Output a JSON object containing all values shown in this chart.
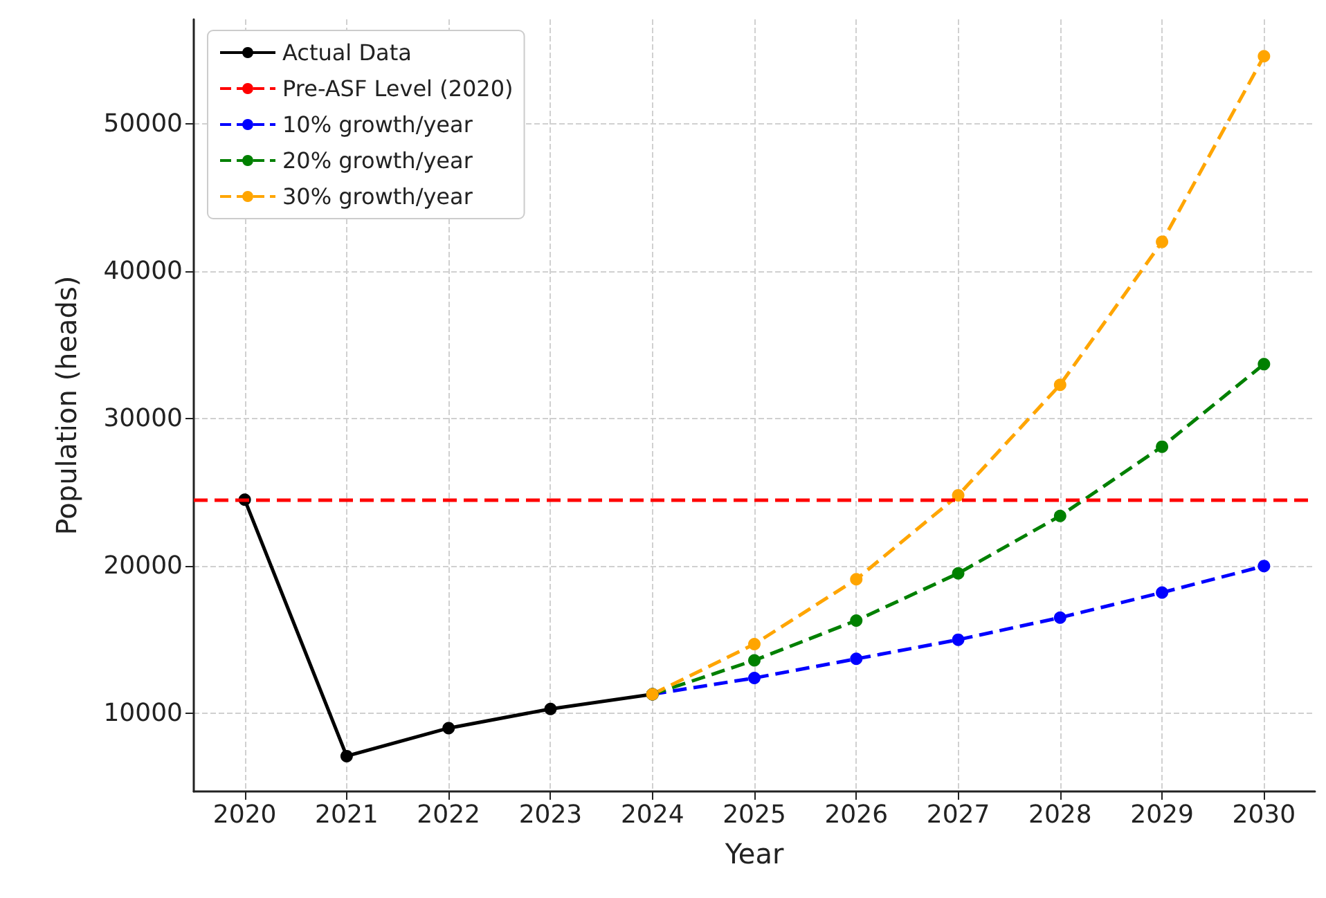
{
  "chart_data": {
    "type": "line",
    "xlabel": "Year",
    "ylabel": "Population (heads)",
    "xlim": [
      2019.5,
      2030.5
    ],
    "xticks": [
      2020,
      2021,
      2022,
      2023,
      2024,
      2025,
      2026,
      2027,
      2028,
      2029,
      2030
    ],
    "ylim": [
      4700,
      57100
    ],
    "yticks": [
      10000,
      20000,
      30000,
      40000,
      50000
    ],
    "grid": true,
    "legend": "top left",
    "marker": "circle",
    "series": [
      {
        "name": "Actual Data",
        "color": "#000000",
        "line_style": "solid",
        "x": [
          2020,
          2021,
          2022,
          2023,
          2024
        ],
        "values": [
          24500,
          7100,
          9000,
          10300,
          11300
        ]
      },
      {
        "name": "10% growth/year",
        "color": "#0000ff",
        "line_style": "dashed",
        "x": [
          2024,
          2025,
          2026,
          2027,
          2028,
          2029,
          2030
        ],
        "values": [
          11300,
          12400,
          13700,
          15000,
          16500,
          18200,
          20000
        ]
      },
      {
        "name": "20% growth/year",
        "color": "#008000",
        "line_style": "dashed",
        "x": [
          2024,
          2025,
          2026,
          2027,
          2028,
          2029,
          2030
        ],
        "values": [
          11300,
          13600,
          16300,
          19500,
          23400,
          28100,
          33700
        ]
      },
      {
        "name": "30% growth/year",
        "color": "#ffa500",
        "line_style": "dashed",
        "x": [
          2024,
          2025,
          2026,
          2027,
          2028,
          2029,
          2030
        ],
        "values": [
          11300,
          14700,
          19100,
          24800,
          32300,
          42000,
          54600
        ]
      }
    ],
    "ref_lines": [
      {
        "axis": "y",
        "value": 24500,
        "label": "Pre-ASF Level (2020)",
        "color": "#ff0000",
        "line_style": "dashed"
      }
    ]
  }
}
